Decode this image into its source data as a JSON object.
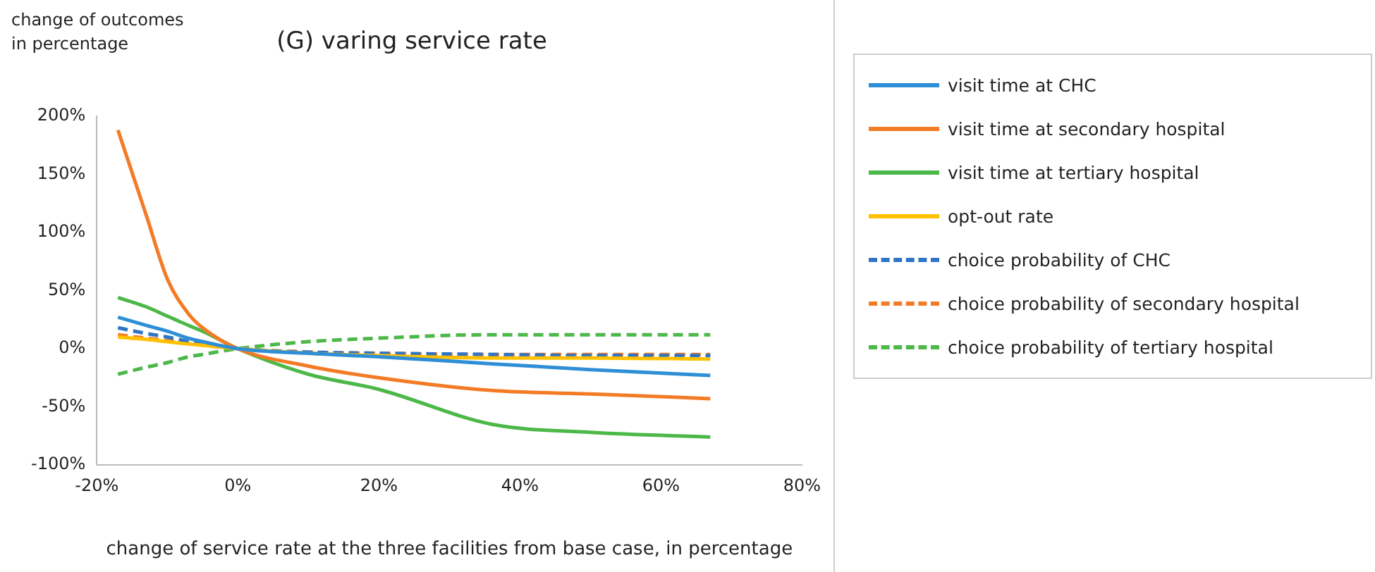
{
  "chart_data": {
    "type": "line",
    "title": "(G) varing service rate",
    "xlabel": "change of service rate at the three facilities from base case, in percentage",
    "ylabel": "change of outcomes in percentage",
    "x": [
      -17,
      -13,
      -10,
      -7,
      -5,
      0,
      10,
      20,
      36,
      50,
      67
    ],
    "xlim": [
      -20,
      80
    ],
    "xticks": [
      {
        "value": -20,
        "label": "-20%"
      },
      {
        "value": 0,
        "label": "0%"
      },
      {
        "value": 20,
        "label": "20%"
      },
      {
        "value": 40,
        "label": "40%"
      },
      {
        "value": 60,
        "label": "60%"
      },
      {
        "value": 80,
        "label": "80%"
      }
    ],
    "ylim": [
      -100,
      200
    ],
    "yticks": [
      {
        "value": -100,
        "label": "-100%"
      },
      {
        "value": -50,
        "label": "-50%"
      },
      {
        "value": 0,
        "label": "0%"
      },
      {
        "value": 50,
        "label": "50%"
      },
      {
        "value": 100,
        "label": "100%"
      },
      {
        "value": 150,
        "label": "150%"
      },
      {
        "value": 200,
        "label": "200%"
      }
    ],
    "grid": false,
    "legend": "right",
    "marker": "none",
    "series": [
      {
        "name": "visit time at CHC",
        "color": "#2e8fd6",
        "line_style": "solid",
        "values": [
          27,
          20,
          15,
          9,
          6,
          0,
          -4,
          -7,
          -13,
          -18,
          -23
        ]
      },
      {
        "name": "visit time at secondary hospital",
        "color": "#f47b25",
        "line_style": "solid",
        "values": [
          188,
          115,
          60,
          30,
          18,
          0,
          -15,
          -25,
          -36,
          -39,
          -43
        ]
      },
      {
        "name": "visit time at tertiary hospital",
        "color": "#4cb848",
        "line_style": "solid",
        "values": [
          44,
          36,
          28,
          20,
          15,
          0,
          -22,
          -35,
          -65,
          -72,
          -76
        ]
      },
      {
        "name": "opt-out rate",
        "color": "#ffc000",
        "line_style": "solid",
        "values": [
          10,
          8,
          6,
          4,
          3,
          0,
          -4,
          -6,
          -8,
          -8,
          -9
        ]
      },
      {
        "name": "choice probability of CHC",
        "color": "#2e75c6",
        "line_style": "dashed",
        "values": [
          18,
          13,
          10,
          6,
          4,
          0,
          -3,
          -4,
          -5,
          -6,
          -6
        ]
      },
      {
        "name": "choice probability of secondary hospital",
        "color": "#f47b25",
        "line_style": "dashed",
        "values": [
          12,
          9,
          7,
          5,
          3,
          0,
          -3,
          -4,
          -5,
          -5,
          -5
        ]
      },
      {
        "name": "choice probability of tertiary hospital",
        "color": "#4cb848",
        "line_style": "dashed",
        "values": [
          -22,
          -16,
          -12,
          -7,
          -5,
          0,
          6,
          9,
          12,
          12,
          12
        ]
      }
    ]
  }
}
